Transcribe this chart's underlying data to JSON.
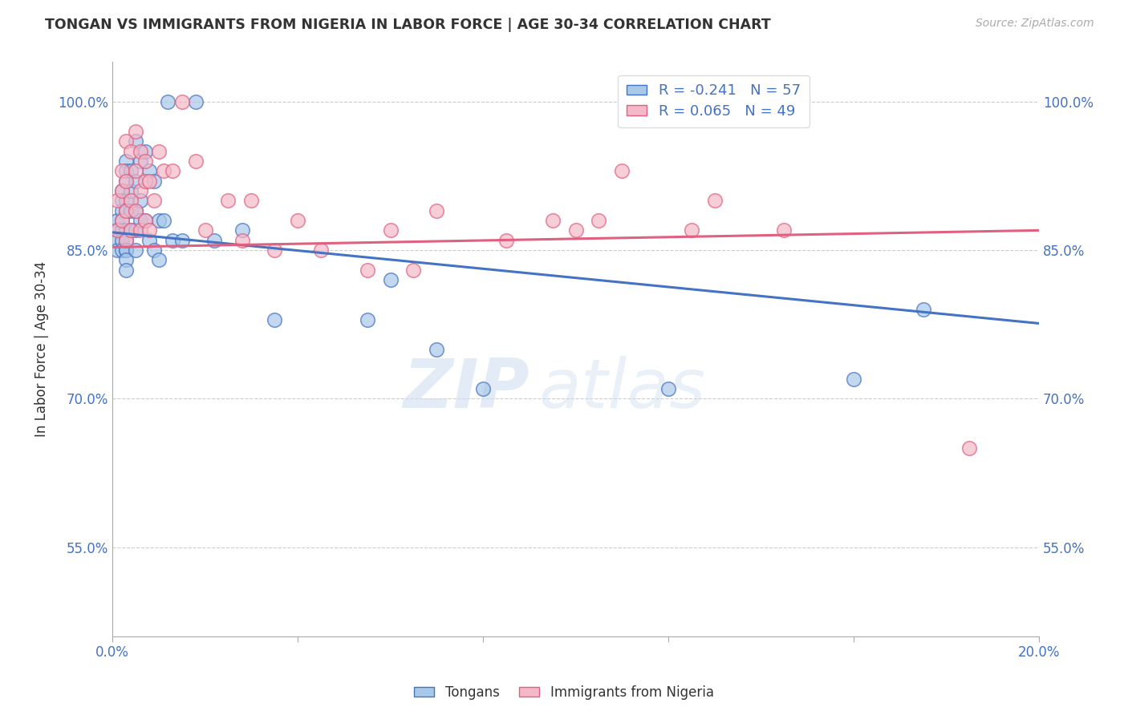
{
  "title": "TONGAN VS IMMIGRANTS FROM NIGERIA IN LABOR FORCE | AGE 30-34 CORRELATION CHART",
  "source": "Source: ZipAtlas.com",
  "xlabel": "",
  "ylabel": "In Labor Force | Age 30-34",
  "xlim": [
    0.0,
    0.2
  ],
  "ylim": [
    0.46,
    1.04
  ],
  "xticks": [
    0.0,
    0.04,
    0.08,
    0.12,
    0.16,
    0.2
  ],
  "xticklabels": [
    "0.0%",
    "",
    "",
    "",
    "",
    "20.0%"
  ],
  "yticks": [
    0.55,
    0.7,
    0.85,
    1.0
  ],
  "yticklabels": [
    "55.0%",
    "70.0%",
    "85.0%",
    "100.0%"
  ],
  "legend_labels": [
    "Tongans",
    "Immigrants from Nigeria"
  ],
  "r_blue": -0.241,
  "n_blue": 57,
  "r_pink": 0.065,
  "n_pink": 49,
  "blue_color": "#a8c8e8",
  "pink_color": "#f4b8c8",
  "blue_line_color": "#4472c4",
  "pink_line_color": "#e06080",
  "watermark_zip": "ZIP",
  "watermark_atlas": "atlas",
  "background_color": "#ffffff",
  "blue_trend_x0": 0.0,
  "blue_trend_y0": 0.868,
  "blue_trend_x1": 0.2,
  "blue_trend_y1": 0.776,
  "pink_trend_x0": 0.0,
  "pink_trend_y0": 0.853,
  "pink_trend_x1": 0.2,
  "pink_trend_y1": 0.87,
  "blue_scatter_x": [
    0.001,
    0.001,
    0.001,
    0.001,
    0.002,
    0.002,
    0.002,
    0.002,
    0.002,
    0.002,
    0.002,
    0.003,
    0.003,
    0.003,
    0.003,
    0.003,
    0.003,
    0.003,
    0.003,
    0.003,
    0.003,
    0.003,
    0.004,
    0.004,
    0.004,
    0.004,
    0.005,
    0.005,
    0.005,
    0.005,
    0.005,
    0.006,
    0.006,
    0.006,
    0.007,
    0.007,
    0.008,
    0.008,
    0.009,
    0.009,
    0.01,
    0.01,
    0.011,
    0.012,
    0.013,
    0.015,
    0.018,
    0.022,
    0.028,
    0.035,
    0.055,
    0.06,
    0.07,
    0.08,
    0.12,
    0.16,
    0.175
  ],
  "blue_scatter_y": [
    0.88,
    0.87,
    0.86,
    0.85,
    0.91,
    0.9,
    0.89,
    0.88,
    0.87,
    0.86,
    0.85,
    0.94,
    0.93,
    0.92,
    0.9,
    0.89,
    0.87,
    0.86,
    0.85,
    0.85,
    0.84,
    0.83,
    0.93,
    0.91,
    0.89,
    0.87,
    0.96,
    0.92,
    0.89,
    0.87,
    0.85,
    0.94,
    0.9,
    0.88,
    0.95,
    0.88,
    0.93,
    0.86,
    0.92,
    0.85,
    0.88,
    0.84,
    0.88,
    1.0,
    0.86,
    0.86,
    1.0,
    0.86,
    0.87,
    0.78,
    0.78,
    0.82,
    0.75,
    0.71,
    0.71,
    0.72,
    0.79
  ],
  "pink_scatter_x": [
    0.001,
    0.001,
    0.002,
    0.002,
    0.002,
    0.003,
    0.003,
    0.003,
    0.003,
    0.004,
    0.004,
    0.004,
    0.005,
    0.005,
    0.005,
    0.006,
    0.006,
    0.006,
    0.007,
    0.007,
    0.007,
    0.008,
    0.008,
    0.009,
    0.01,
    0.011,
    0.013,
    0.015,
    0.018,
    0.02,
    0.025,
    0.028,
    0.03,
    0.035,
    0.04,
    0.045,
    0.055,
    0.06,
    0.065,
    0.07,
    0.085,
    0.095,
    0.1,
    0.105,
    0.11,
    0.125,
    0.13,
    0.145,
    0.185
  ],
  "pink_scatter_y": [
    0.9,
    0.87,
    0.93,
    0.91,
    0.88,
    0.96,
    0.92,
    0.89,
    0.86,
    0.95,
    0.9,
    0.87,
    0.97,
    0.93,
    0.89,
    0.95,
    0.91,
    0.87,
    0.94,
    0.92,
    0.88,
    0.92,
    0.87,
    0.9,
    0.95,
    0.93,
    0.93,
    1.0,
    0.94,
    0.87,
    0.9,
    0.86,
    0.9,
    0.85,
    0.88,
    0.85,
    0.83,
    0.87,
    0.83,
    0.89,
    0.86,
    0.88,
    0.87,
    0.88,
    0.93,
    0.87,
    0.9,
    0.87,
    0.65
  ]
}
